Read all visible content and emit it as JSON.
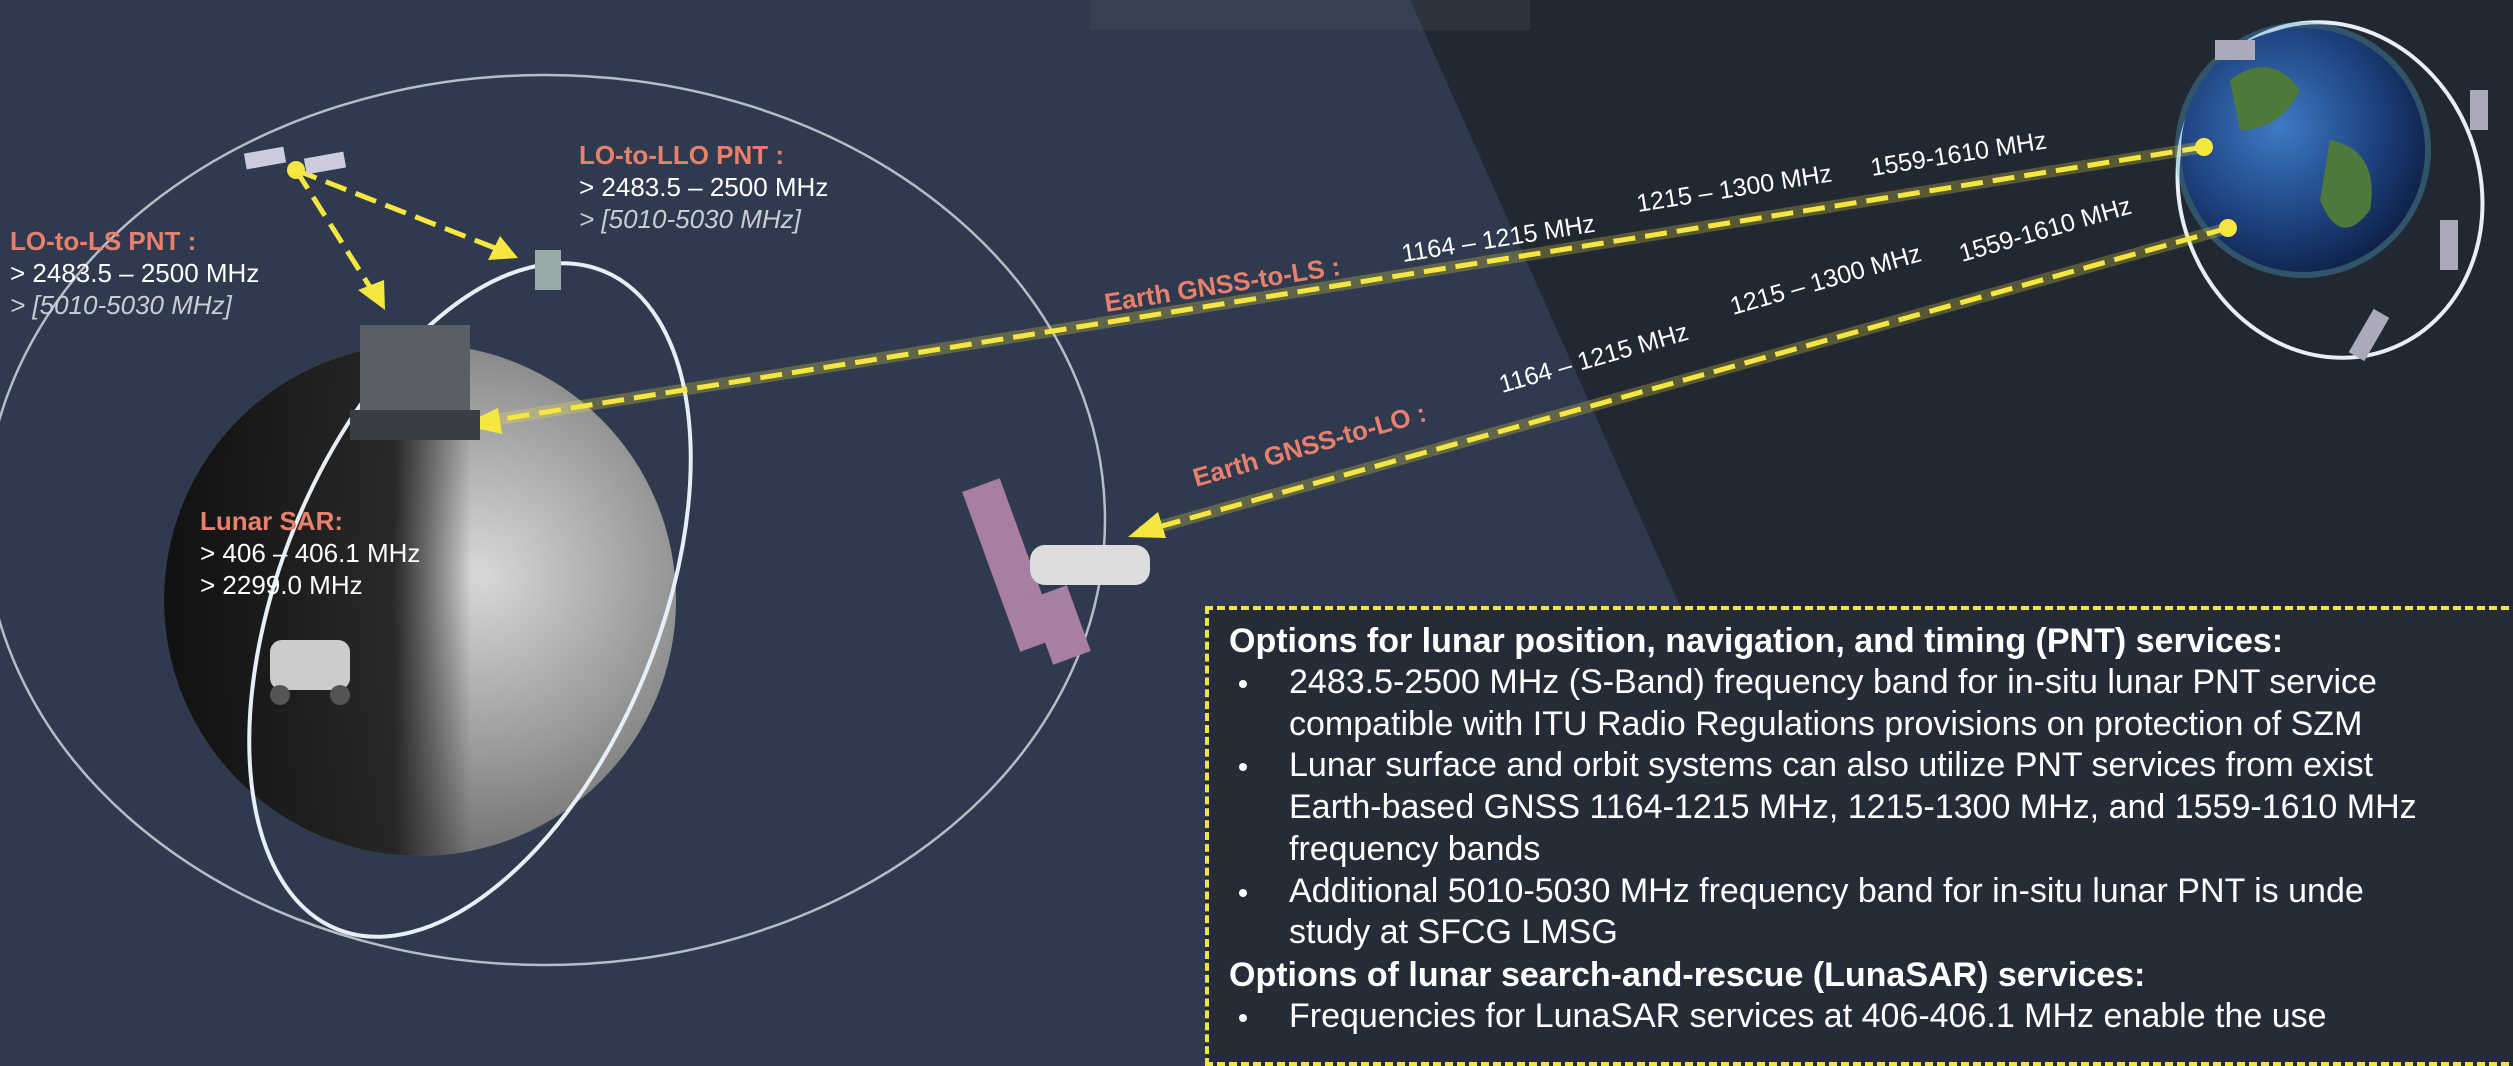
{
  "labels": {
    "lo_to_ls": {
      "title": "LO-to-LS PNT :",
      "lines": [
        "> 2483.5 – 2500 MHz",
        "> [5010-5030 MHz]"
      ]
    },
    "lo_to_llo": {
      "title": "LO-to-LLO PNT :",
      "lines": [
        "> 2483.5 – 2500 MHz",
        "> [5010-5030 MHz]"
      ]
    },
    "lunar_sar": {
      "title": "Lunar SAR:",
      "lines": [
        "> 406 – 406.1 MHz",
        "> 2299.0 MHz"
      ]
    }
  },
  "links": [
    {
      "label": "Earth GNSS-to-LS :",
      "bands": [
        "1164 – 1215 MHz",
        "1215 – 1300 MHz",
        "1559-1610 MHz"
      ]
    },
    {
      "label": "Earth GNSS-to-LO :",
      "bands": [
        "1164 – 1215 MHz",
        "1215 – 1300 MHz",
        "1559-1610 MHz"
      ]
    }
  ],
  "info_box": {
    "sections": [
      {
        "heading": "Options for lunar position, navigation, and timing (PNT) services:",
        "bullets": [
          [
            "2483.5-2500 MHz (S-Band) frequency band for in-situ lunar PNT service",
            "compatible with ITU Radio Regulations provisions on protection of SZM"
          ],
          [
            "Lunar surface and orbit systems can also utilize PNT services from exist",
            "Earth-based GNSS 1164-1215 MHz, 1215-1300 MHz, and 1559-1610 MHz",
            "frequency bands"
          ],
          [
            "Additional 5010-5030 MHz frequency band for in-situ lunar PNT is unde",
            "study at SFCG LMSG"
          ]
        ]
      },
      {
        "heading": "Options of lunar search-and-rescue (LunaSAR) services:",
        "bullets": [
          [
            "Frequencies for LunaSAR services at 406-406.1 MHz enable the use"
          ]
        ]
      }
    ]
  }
}
